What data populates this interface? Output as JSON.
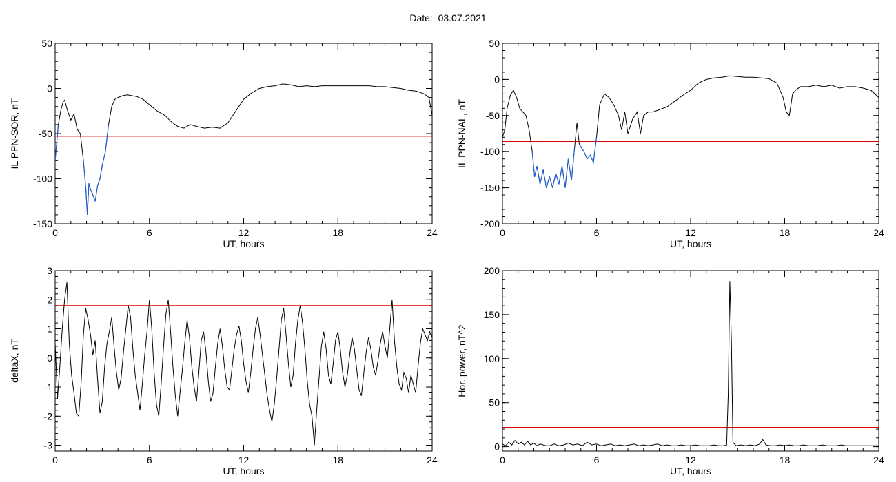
{
  "figure": {
    "date_label": "Date:",
    "date_value": "03.07.2021"
  },
  "chart_data": [
    {
      "type": "line",
      "xlabel": "UT, hours",
      "ylabel": "IL PPN-SOR, nT",
      "xlim": [
        0,
        24
      ],
      "ylim": [
        -150,
        50
      ],
      "xticks": [
        0,
        6,
        12,
        18,
        24
      ],
      "yticks": [
        -150,
        -100,
        -50,
        0,
        50
      ],
      "threshold": -53,
      "threshold_color": "#e00000",
      "line_color": "#000000",
      "highlight_color": "#1f5fd0",
      "highlight_ranges": [
        [
          0,
          0.2
        ],
        [
          1.8,
          3.4
        ]
      ],
      "series": [
        {
          "x": [
            0,
            0.1,
            0.2,
            0.35,
            0.5,
            0.6,
            0.8,
            1.0,
            1.2,
            1.4,
            1.6,
            1.8,
            1.95,
            2.05,
            2.15,
            2.25,
            2.4,
            2.55,
            2.7,
            2.85,
            3.0,
            3.2,
            3.4,
            3.6,
            3.8,
            4.0,
            4.3,
            4.6,
            4.9,
            5.2,
            5.6,
            6.0,
            6.5,
            7.0,
            7.4,
            7.8,
            8.2,
            8.6,
            9.0,
            9.5,
            10.0,
            10.5,
            11.0,
            11.5,
            12.0,
            12.5,
            13.0,
            13.5,
            14.0,
            14.5,
            15.0,
            15.5,
            16.0,
            16.5,
            17.0,
            17.5,
            18.0,
            18.5,
            19.0,
            19.5,
            20.0,
            20.5,
            21.0,
            21.5,
            22.0,
            22.5,
            23.0,
            23.5,
            23.8,
            24.0
          ],
          "y": [
            -80,
            -60,
            -40,
            -25,
            -15,
            -13,
            -25,
            -35,
            -28,
            -45,
            -50,
            -80,
            -110,
            -140,
            -105,
            -112,
            -118,
            -125,
            -108,
            -100,
            -85,
            -70,
            -40,
            -20,
            -12,
            -10,
            -8,
            -7,
            -8,
            -9,
            -12,
            -18,
            -25,
            -30,
            -37,
            -42,
            -44,
            -40,
            -42,
            -44,
            -43,
            -44,
            -38,
            -25,
            -12,
            -5,
            0,
            2,
            3,
            5,
            4,
            2,
            3,
            2,
            3,
            3,
            3,
            3,
            3,
            3,
            3,
            2,
            2,
            1,
            0,
            -2,
            -3,
            -6,
            -10,
            -30
          ]
        }
      ]
    },
    {
      "type": "line",
      "xlabel": "UT, hours",
      "ylabel": "IL PPN-NAL, nT",
      "xlim": [
        0,
        24
      ],
      "ylim": [
        -200,
        50
      ],
      "xticks": [
        0,
        6,
        12,
        18,
        24
      ],
      "yticks": [
        -200,
        -150,
        -100,
        -50,
        0,
        50
      ],
      "threshold": -86,
      "threshold_color": "#e00000",
      "line_color": "#000000",
      "highlight_color": "#1f5fd0",
      "highlight_ranges": [
        [
          1.9,
          4.6
        ],
        [
          4.8,
          6.0
        ]
      ],
      "series": [
        {
          "x": [
            0,
            0.15,
            0.3,
            0.5,
            0.7,
            0.9,
            1.1,
            1.3,
            1.5,
            1.7,
            1.9,
            2.05,
            2.2,
            2.4,
            2.6,
            2.8,
            3.0,
            3.2,
            3.4,
            3.6,
            3.8,
            4.0,
            4.2,
            4.4,
            4.6,
            4.75,
            4.9,
            5.05,
            5.2,
            5.4,
            5.6,
            5.8,
            6.0,
            6.2,
            6.5,
            6.8,
            7.1,
            7.4,
            7.6,
            7.8,
            8.0,
            8.3,
            8.6,
            8.8,
            9.0,
            9.3,
            9.6,
            10.0,
            10.5,
            11.0,
            11.5,
            12.0,
            12.5,
            13.0,
            13.5,
            14.0,
            14.5,
            15.0,
            15.5,
            16.0,
            16.5,
            17.0,
            17.5,
            17.9,
            18.1,
            18.3,
            18.5,
            18.7,
            19.0,
            19.5,
            20.0,
            20.5,
            21.0,
            21.5,
            22.0,
            22.5,
            23.0,
            23.5,
            24.0
          ],
          "y": [
            -80,
            -70,
            -40,
            -22,
            -15,
            -25,
            -40,
            -45,
            -50,
            -70,
            -100,
            -135,
            -120,
            -145,
            -125,
            -150,
            -135,
            -150,
            -130,
            -145,
            -120,
            -150,
            -110,
            -140,
            -95,
            -60,
            -90,
            -95,
            -100,
            -110,
            -105,
            -115,
            -80,
            -35,
            -20,
            -25,
            -35,
            -50,
            -70,
            -45,
            -75,
            -55,
            -45,
            -75,
            -50,
            -45,
            -45,
            -42,
            -38,
            -30,
            -22,
            -15,
            -5,
            0,
            2,
            3,
            5,
            4,
            3,
            3,
            2,
            1,
            -5,
            -25,
            -45,
            -50,
            -20,
            -15,
            -10,
            -10,
            -8,
            -10,
            -8,
            -12,
            -10,
            -10,
            -12,
            -15,
            -25
          ]
        }
      ]
    },
    {
      "type": "line",
      "xlabel": "UT, hours",
      "ylabel": "deltaX, nT",
      "xlim": [
        0,
        24
      ],
      "ylim": [
        -3.2,
        3
      ],
      "xticks": [
        0,
        6,
        12,
        18,
        24
      ],
      "yticks": [
        -3,
        -2,
        -1,
        0,
        1,
        2,
        3
      ],
      "threshold": 1.8,
      "threshold_color": "#e00000",
      "line_color": "#000000",
      "series": [
        {
          "x": [
            0,
            0.15,
            0.3,
            0.45,
            0.6,
            0.75,
            0.9,
            1.05,
            1.2,
            1.35,
            1.5,
            1.65,
            1.8,
            1.95,
            2.1,
            2.25,
            2.4,
            2.55,
            2.7,
            2.85,
            3.0,
            3.15,
            3.3,
            3.45,
            3.6,
            3.75,
            3.9,
            4.05,
            4.2,
            4.35,
            4.5,
            4.65,
            4.8,
            4.95,
            5.1,
            5.25,
            5.4,
            5.55,
            5.7,
            5.85,
            6.0,
            6.15,
            6.3,
            6.45,
            6.6,
            6.75,
            6.9,
            7.05,
            7.2,
            7.35,
            7.5,
            7.65,
            7.8,
            7.95,
            8.1,
            8.25,
            8.4,
            8.55,
            8.7,
            8.85,
            9.0,
            9.15,
            9.3,
            9.45,
            9.6,
            9.75,
            9.9,
            10.05,
            10.2,
            10.35,
            10.5,
            10.65,
            10.8,
            10.95,
            11.1,
            11.25,
            11.4,
            11.55,
            11.7,
            11.85,
            12.0,
            12.15,
            12.3,
            12.45,
            12.6,
            12.75,
            12.9,
            13.05,
            13.2,
            13.35,
            13.5,
            13.65,
            13.8,
            13.95,
            14.1,
            14.25,
            14.4,
            14.55,
            14.7,
            14.85,
            15.0,
            15.15,
            15.3,
            15.45,
            15.6,
            15.75,
            15.9,
            16.05,
            16.2,
            16.35,
            16.5,
            16.65,
            16.8,
            16.95,
            17.1,
            17.25,
            17.4,
            17.55,
            17.7,
            17.85,
            18.0,
            18.15,
            18.3,
            18.45,
            18.6,
            18.75,
            18.9,
            19.05,
            19.2,
            19.35,
            19.5,
            19.65,
            19.8,
            19.95,
            20.1,
            20.25,
            20.4,
            20.55,
            20.7,
            20.85,
            21.0,
            21.15,
            21.3,
            21.45,
            21.6,
            21.75,
            21.9,
            22.05,
            22.2,
            22.35,
            22.5,
            22.65,
            22.8,
            22.95,
            23.1,
            23.25,
            23.4,
            23.55,
            23.7,
            23.85,
            24.0
          ],
          "y": [
            0.5,
            -1.4,
            -0.3,
            1.0,
            2.0,
            2.6,
            0.5,
            -0.6,
            -1.2,
            -1.9,
            -2.0,
            -0.9,
            0.8,
            1.7,
            1.3,
            0.8,
            0.1,
            0.6,
            -0.7,
            -1.9,
            -1.5,
            -0.3,
            0.5,
            0.9,
            1.4,
            0.4,
            -0.5,
            -1.1,
            -0.7,
            0.2,
            1.0,
            1.8,
            1.4,
            0.3,
            -0.6,
            -1.2,
            -1.8,
            -0.9,
            0.1,
            0.9,
            2.0,
            1.0,
            -0.5,
            -1.6,
            -2.0,
            -0.9,
            0.4,
            1.5,
            2.0,
            0.9,
            -0.3,
            -1.3,
            -2.0,
            -1.2,
            -0.4,
            0.5,
            1.3,
            0.7,
            -0.3,
            -1.0,
            -1.5,
            -0.5,
            0.6,
            0.9,
            0.2,
            -0.8,
            -1.5,
            -1.2,
            -0.3,
            0.5,
            1.0,
            0.4,
            -0.4,
            -1.0,
            -1.1,
            -0.4,
            0.3,
            0.8,
            1.1,
            0.6,
            -0.2,
            -0.8,
            -1.2,
            -0.5,
            0.3,
            1.0,
            1.4,
            0.8,
            0.1,
            -0.6,
            -1.3,
            -1.8,
            -2.2,
            -1.6,
            -0.7,
            0.3,
            1.3,
            1.7,
            0.8,
            -0.2,
            -1.0,
            -0.6,
            0.5,
            1.3,
            1.8,
            1.2,
            0.3,
            -0.8,
            -1.6,
            -2.0,
            -3.0,
            -1.8,
            -0.7,
            0.4,
            0.9,
            0.3,
            -0.6,
            -0.9,
            -0.2,
            0.6,
            0.9,
            0.3,
            -0.5,
            -1.0,
            -0.6,
            0.1,
            0.7,
            0.3,
            -0.4,
            -1.1,
            -1.3,
            -0.5,
            0.2,
            0.7,
            0.3,
            -0.3,
            -0.6,
            -0.1,
            0.5,
            0.9,
            0.4,
            0.0,
            1.0,
            2.0,
            0.6,
            -0.3,
            -0.9,
            -1.1,
            -0.5,
            -0.7,
            -1.2,
            -0.6,
            -0.9,
            -1.2,
            -0.3,
            0.5,
            1.0,
            0.8,
            0.6,
            0.9,
            0.7
          ]
        }
      ]
    },
    {
      "type": "line",
      "xlabel": "UT, hours",
      "ylabel": "Hor. power, nT^2",
      "xlim": [
        0,
        24
      ],
      "ylim": [
        -5,
        200
      ],
      "xticks": [
        0,
        6,
        12,
        18,
        24
      ],
      "yticks": [
        0,
        50,
        100,
        150,
        200
      ],
      "threshold": 22,
      "threshold_color": "#e00000",
      "line_color": "#000000",
      "series": [
        {
          "x": [
            0,
            0.2,
            0.4,
            0.6,
            0.8,
            1.0,
            1.2,
            1.4,
            1.6,
            1.8,
            2.0,
            2.2,
            2.4,
            2.6,
            2.8,
            3.0,
            3.3,
            3.6,
            3.9,
            4.2,
            4.5,
            4.8,
            5.1,
            5.4,
            5.7,
            6.0,
            6.3,
            6.6,
            6.9,
            7.2,
            7.5,
            7.8,
            8.1,
            8.4,
            8.7,
            9.0,
            9.3,
            9.6,
            9.9,
            10.2,
            10.5,
            10.8,
            11.1,
            11.4,
            11.7,
            12.0,
            12.3,
            12.6,
            12.9,
            13.2,
            13.5,
            13.8,
            14.1,
            14.3,
            14.4,
            14.5,
            14.6,
            14.7,
            14.9,
            15.2,
            15.5,
            15.8,
            16.1,
            16.4,
            16.6,
            16.8,
            17.1,
            17.4,
            17.7,
            18.0,
            18.3,
            18.6,
            18.9,
            19.2,
            19.5,
            19.8,
            20.1,
            20.4,
            20.7,
            21.0,
            21.3,
            21.6,
            21.9,
            22.2,
            22.5,
            22.8,
            23.1,
            23.4,
            23.7,
            24.0
          ],
          "y": [
            3,
            1,
            5,
            2,
            7,
            3,
            5,
            2,
            6,
            2,
            4,
            1,
            3,
            2,
            1,
            1,
            3,
            1,
            2,
            4,
            2,
            3,
            1,
            5,
            2,
            3,
            1,
            2,
            3,
            1,
            2,
            1,
            2,
            3,
            1,
            2,
            1,
            2,
            3,
            1,
            2,
            1,
            1,
            2,
            1,
            1,
            2,
            1,
            1,
            1,
            2,
            1,
            1,
            2,
            60,
            188,
            120,
            5,
            1,
            2,
            1,
            2,
            1,
            3,
            8,
            2,
            1,
            1,
            2,
            1,
            2,
            1,
            1,
            2,
            1,
            1,
            1,
            2,
            1,
            1,
            1,
            2,
            1,
            1,
            1,
            1,
            1,
            1,
            1,
            1
          ]
        }
      ]
    }
  ]
}
